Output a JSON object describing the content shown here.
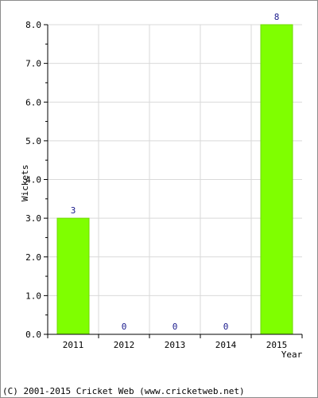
{
  "chart_data": {
    "type": "bar",
    "categories": [
      "2011",
      "2012",
      "2013",
      "2014",
      "2015"
    ],
    "values": [
      3,
      0,
      0,
      0,
      8
    ],
    "data_labels": [
      "3",
      "0",
      "0",
      "0",
      "8"
    ],
    "ylabel": "Wickets",
    "xlabel": "Year",
    "ylim": [
      0,
      8
    ],
    "yticks": [
      "0.0",
      "1.0",
      "2.0",
      "3.0",
      "4.0",
      "5.0",
      "6.0",
      "7.0",
      "8.0"
    ],
    "grid": true,
    "legend": "none",
    "colors": {
      "bar": "#7fff00",
      "bar_stroke": "#6fd900",
      "label": "#1a1a8c",
      "grid": "#d9d9d9",
      "axis": "#000000"
    }
  },
  "footer": {
    "copyright": "(C) 2001-2015 Cricket Web (www.cricketweb.net)"
  }
}
